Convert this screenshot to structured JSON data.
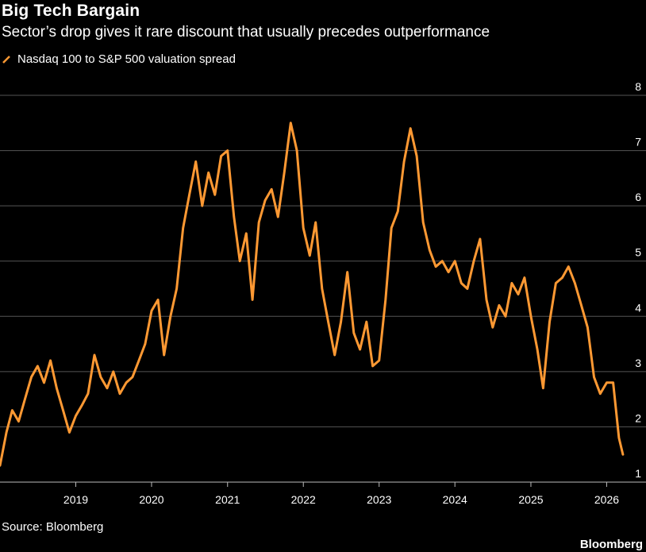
{
  "title": "Big Tech Bargain",
  "subtitle": "Sector’s drop gives it rare discount that usually precedes outperformance",
  "source": "Source: Bloomberg",
  "brand": "Bloomberg",
  "colors": {
    "background": "#000000",
    "series": "#ff9933",
    "grid": "#555555",
    "text": "#ffffff"
  },
  "chart_data": {
    "type": "line",
    "xlabel": "",
    "ylabel": "",
    "x_ticks": [
      "2019",
      "2020",
      "2021",
      "2022",
      "2023",
      "2024",
      "2025",
      "2026"
    ],
    "y_ticks": [
      1,
      2,
      3,
      4,
      5,
      6,
      7,
      8
    ],
    "ylim": [
      1,
      8
    ],
    "xlim": [
      "2018-01",
      "2026-04"
    ],
    "grid": "horizontal",
    "legend": "top-left",
    "series": [
      {
        "name": "Nasdaq 100 to S&P 500 valuation spread",
        "color": "#ff9933",
        "points": [
          [
            "2018-01",
            1.3
          ],
          [
            "2018-02",
            1.9
          ],
          [
            "2018-03",
            2.3
          ],
          [
            "2018-04",
            2.1
          ],
          [
            "2018-05",
            2.5
          ],
          [
            "2018-06",
            2.9
          ],
          [
            "2018-07",
            3.1
          ],
          [
            "2018-08",
            2.8
          ],
          [
            "2018-09",
            3.2
          ],
          [
            "2018-10",
            2.7
          ],
          [
            "2018-11",
            2.3
          ],
          [
            "2018-12",
            1.9
          ],
          [
            "2019-01",
            2.2
          ],
          [
            "2019-02",
            2.4
          ],
          [
            "2019-03",
            2.6
          ],
          [
            "2019-04",
            3.3
          ],
          [
            "2019-05",
            2.9
          ],
          [
            "2019-06",
            2.7
          ],
          [
            "2019-07",
            3.0
          ],
          [
            "2019-08",
            2.6
          ],
          [
            "2019-09",
            2.8
          ],
          [
            "2019-10",
            2.9
          ],
          [
            "2019-11",
            3.2
          ],
          [
            "2019-12",
            3.5
          ],
          [
            "2020-01",
            4.1
          ],
          [
            "2020-02",
            4.3
          ],
          [
            "2020-03",
            3.3
          ],
          [
            "2020-04",
            4.0
          ],
          [
            "2020-05",
            4.5
          ],
          [
            "2020-06",
            5.6
          ],
          [
            "2020-07",
            6.2
          ],
          [
            "2020-08",
            6.8
          ],
          [
            "2020-09",
            6.0
          ],
          [
            "2020-10",
            6.6
          ],
          [
            "2020-11",
            6.2
          ],
          [
            "2020-12",
            6.9
          ],
          [
            "2021-01",
            7.0
          ],
          [
            "2021-02",
            5.8
          ],
          [
            "2021-03",
            5.0
          ],
          [
            "2021-04",
            5.5
          ],
          [
            "2021-05",
            4.3
          ],
          [
            "2021-06",
            5.7
          ],
          [
            "2021-07",
            6.1
          ],
          [
            "2021-08",
            6.3
          ],
          [
            "2021-09",
            5.8
          ],
          [
            "2021-10",
            6.6
          ],
          [
            "2021-11",
            7.5
          ],
          [
            "2021-12",
            7.0
          ],
          [
            "2022-01",
            5.6
          ],
          [
            "2022-02",
            5.1
          ],
          [
            "2022-03",
            5.7
          ],
          [
            "2022-04",
            4.5
          ],
          [
            "2022-05",
            3.9
          ],
          [
            "2022-06",
            3.3
          ],
          [
            "2022-07",
            3.9
          ],
          [
            "2022-08",
            4.8
          ],
          [
            "2022-09",
            3.7
          ],
          [
            "2022-10",
            3.4
          ],
          [
            "2022-11",
            3.9
          ],
          [
            "2022-12",
            3.1
          ],
          [
            "2023-01",
            3.2
          ],
          [
            "2023-02",
            4.3
          ],
          [
            "2023-03",
            5.6
          ],
          [
            "2023-04",
            5.9
          ],
          [
            "2023-05",
            6.8
          ],
          [
            "2023-06",
            7.4
          ],
          [
            "2023-07",
            6.9
          ],
          [
            "2023-08",
            5.7
          ],
          [
            "2023-09",
            5.2
          ],
          [
            "2023-10",
            4.9
          ],
          [
            "2023-11",
            5.0
          ],
          [
            "2023-12",
            4.8
          ],
          [
            "2024-01",
            5.0
          ],
          [
            "2024-02",
            4.6
          ],
          [
            "2024-03",
            4.5
          ],
          [
            "2024-04",
            5.0
          ],
          [
            "2024-05",
            5.4
          ],
          [
            "2024-06",
            4.3
          ],
          [
            "2024-07",
            3.8
          ],
          [
            "2024-08",
            4.2
          ],
          [
            "2024-09",
            4.0
          ],
          [
            "2024-10",
            4.6
          ],
          [
            "2024-11",
            4.4
          ],
          [
            "2024-12",
            4.7
          ],
          [
            "2025-01",
            4.0
          ],
          [
            "2025-02",
            3.4
          ],
          [
            "2025-03",
            2.7
          ],
          [
            "2025-04",
            3.9
          ],
          [
            "2025-05",
            4.6
          ],
          [
            "2025-06",
            4.7
          ],
          [
            "2025-07",
            4.9
          ],
          [
            "2025-08",
            4.6
          ],
          [
            "2025-09",
            4.2
          ],
          [
            "2025-10",
            3.8
          ],
          [
            "2025-11",
            2.9
          ],
          [
            "2025-12",
            2.6
          ],
          [
            "2026-01",
            2.8
          ],
          [
            "2026-02",
            2.8
          ],
          [
            "2026-03",
            1.8
          ],
          [
            "2026-03-20",
            1.5
          ]
        ]
      }
    ]
  }
}
